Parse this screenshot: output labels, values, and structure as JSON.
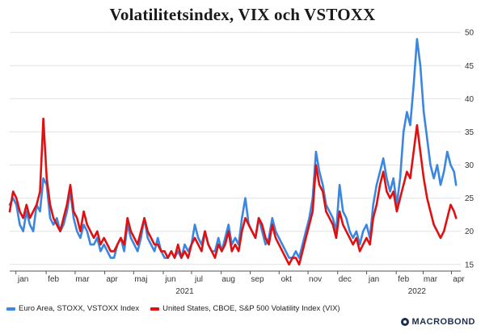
{
  "chart_data": {
    "type": "line",
    "title": "Volatilitetsindex, VIX och VSTOXX",
    "ylim": [
      14,
      51
    ],
    "yticks": [
      15,
      20,
      25,
      30,
      35,
      40,
      45,
      50
    ],
    "yaxis_side": "right",
    "grid": "horizontal",
    "xlim": [
      0,
      67
    ],
    "month_ticks": [
      {
        "label": "jan",
        "x": 2
      },
      {
        "label": "feb",
        "x": 6.5
      },
      {
        "label": "mar",
        "x": 10.8
      },
      {
        "label": "apr",
        "x": 15.2
      },
      {
        "label": "maj",
        "x": 19.5
      },
      {
        "label": "jun",
        "x": 23.9
      },
      {
        "label": "jul",
        "x": 28.1
      },
      {
        "label": "aug",
        "x": 32.5
      },
      {
        "label": "sep",
        "x": 36.8
      },
      {
        "label": "okt",
        "x": 41.1
      },
      {
        "label": "nov",
        "x": 45.4
      },
      {
        "label": "dec",
        "x": 49.8
      },
      {
        "label": "jan",
        "x": 54.1
      },
      {
        "label": "feb",
        "x": 58.5
      },
      {
        "label": "mar",
        "x": 62.5
      },
      {
        "label": "apr",
        "x": 66.7
      }
    ],
    "year_labels": [
      {
        "label": "2021",
        "x": 26
      },
      {
        "label": "2022",
        "x": 60.5
      }
    ],
    "x_unit": "weeks since start of Dec 2020",
    "legend_position": "bottom-left",
    "series": [
      {
        "name": "Euro Area, STOXX, VSTOXX Index",
        "color": "#3a86e0",
        "values": [
          [
            0,
            24
          ],
          [
            0.5,
            25
          ],
          [
            1,
            24
          ],
          [
            1.5,
            21
          ],
          [
            2,
            20
          ],
          [
            2.5,
            23
          ],
          [
            3,
            21
          ],
          [
            3.5,
            20
          ],
          [
            4,
            24
          ],
          [
            4.5,
            23
          ],
          [
            5,
            28
          ],
          [
            5.5,
            27
          ],
          [
            6,
            22
          ],
          [
            6.5,
            21
          ],
          [
            7,
            22
          ],
          [
            7.5,
            20
          ],
          [
            8,
            21
          ],
          [
            8.5,
            23
          ],
          [
            9,
            26
          ],
          [
            9.5,
            22
          ],
          [
            10,
            20
          ],
          [
            10.5,
            19
          ],
          [
            11,
            21
          ],
          [
            11.5,
            20
          ],
          [
            12,
            18
          ],
          [
            12.5,
            18
          ],
          [
            13,
            19
          ],
          [
            13.5,
            17
          ],
          [
            14,
            18
          ],
          [
            14.5,
            17
          ],
          [
            15,
            16
          ],
          [
            15.5,
            16
          ],
          [
            16,
            18
          ],
          [
            16.5,
            19
          ],
          [
            17,
            17
          ],
          [
            17.5,
            21
          ],
          [
            18,
            19
          ],
          [
            18.5,
            18
          ],
          [
            19,
            17
          ],
          [
            19.5,
            19
          ],
          [
            20,
            22
          ],
          [
            20.5,
            19
          ],
          [
            21,
            18
          ],
          [
            21.5,
            17
          ],
          [
            22,
            19
          ],
          [
            22.5,
            17
          ],
          [
            23,
            16
          ],
          [
            23.5,
            16
          ],
          [
            24,
            17
          ],
          [
            24.5,
            16
          ],
          [
            25,
            17
          ],
          [
            25.5,
            16
          ],
          [
            26,
            18
          ],
          [
            26.5,
            17
          ],
          [
            27,
            18
          ],
          [
            27.5,
            21
          ],
          [
            28,
            19
          ],
          [
            28.5,
            18
          ],
          [
            29,
            20
          ],
          [
            29.5,
            18
          ],
          [
            30,
            17
          ],
          [
            30.5,
            17
          ],
          [
            31,
            19
          ],
          [
            31.5,
            17
          ],
          [
            32,
            19
          ],
          [
            32.5,
            21
          ],
          [
            33,
            18
          ],
          [
            33.5,
            19
          ],
          [
            34,
            18
          ],
          [
            34.5,
            22
          ],
          [
            35,
            25
          ],
          [
            35.5,
            21
          ],
          [
            36,
            20
          ],
          [
            36.5,
            19
          ],
          [
            37,
            22
          ],
          [
            37.5,
            20
          ],
          [
            38,
            18
          ],
          [
            38.5,
            19
          ],
          [
            39,
            22
          ],
          [
            39.5,
            20
          ],
          [
            40,
            19
          ],
          [
            40.5,
            18
          ],
          [
            41,
            17
          ],
          [
            41.5,
            16
          ],
          [
            42,
            16
          ],
          [
            42.5,
            17
          ],
          [
            43,
            16
          ],
          [
            43.5,
            18
          ],
          [
            44,
            20
          ],
          [
            44.5,
            22
          ],
          [
            45,
            25
          ],
          [
            45.5,
            32
          ],
          [
            46,
            29
          ],
          [
            46.5,
            27
          ],
          [
            47,
            24
          ],
          [
            47.5,
            23
          ],
          [
            48,
            22
          ],
          [
            48.5,
            20
          ],
          [
            49,
            27
          ],
          [
            49.5,
            23
          ],
          [
            50,
            22
          ],
          [
            50.5,
            20
          ],
          [
            51,
            19
          ],
          [
            51.5,
            20
          ],
          [
            52,
            18
          ],
          [
            52.5,
            20
          ],
          [
            53,
            21
          ],
          [
            53.5,
            19
          ],
          [
            54,
            24
          ],
          [
            54.5,
            27
          ],
          [
            55,
            29
          ],
          [
            55.5,
            31
          ],
          [
            56,
            28
          ],
          [
            56.5,
            26
          ],
          [
            57,
            28
          ],
          [
            57.5,
            24
          ],
          [
            58,
            28
          ],
          [
            58.5,
            35
          ],
          [
            59,
            38
          ],
          [
            59.5,
            36
          ],
          [
            60,
            42
          ],
          [
            60.5,
            49
          ],
          [
            61,
            45
          ],
          [
            61.5,
            38
          ],
          [
            62,
            34
          ],
          [
            62.5,
            30
          ],
          [
            63,
            28
          ],
          [
            63.5,
            30
          ],
          [
            64,
            27
          ],
          [
            64.5,
            29
          ],
          [
            65,
            32
          ],
          [
            65.5,
            30
          ],
          [
            66,
            29
          ],
          [
            66.3,
            27
          ]
        ]
      },
      {
        "name": "United States, CBOE, S&P 500 Volatility Index (VIX)",
        "color": "#e01010",
        "values": [
          [
            0,
            23
          ],
          [
            0.5,
            26
          ],
          [
            1,
            25
          ],
          [
            1.5,
            23
          ],
          [
            2,
            22
          ],
          [
            2.5,
            24
          ],
          [
            3,
            22
          ],
          [
            3.5,
            23
          ],
          [
            4,
            24
          ],
          [
            4.5,
            26
          ],
          [
            5,
            37
          ],
          [
            5.5,
            28
          ],
          [
            6,
            24
          ],
          [
            6.5,
            22
          ],
          [
            7,
            21
          ],
          [
            7.5,
            20
          ],
          [
            8,
            22
          ],
          [
            8.5,
            24
          ],
          [
            9,
            27
          ],
          [
            9.5,
            23
          ],
          [
            10,
            22
          ],
          [
            10.5,
            20
          ],
          [
            11,
            23
          ],
          [
            11.5,
            21
          ],
          [
            12,
            20
          ],
          [
            12.5,
            19
          ],
          [
            13,
            20
          ],
          [
            13.5,
            18
          ],
          [
            14,
            19
          ],
          [
            14.5,
            18
          ],
          [
            15,
            17
          ],
          [
            15.5,
            17
          ],
          [
            16,
            18
          ],
          [
            16.5,
            19
          ],
          [
            17,
            18
          ],
          [
            17.5,
            22
          ],
          [
            18,
            20
          ],
          [
            18.5,
            19
          ],
          [
            19,
            18
          ],
          [
            19.5,
            20
          ],
          [
            20,
            22
          ],
          [
            20.5,
            20
          ],
          [
            21,
            19
          ],
          [
            21.5,
            18
          ],
          [
            22,
            18
          ],
          [
            22.5,
            17
          ],
          [
            23,
            17
          ],
          [
            23.5,
            16
          ],
          [
            24,
            17
          ],
          [
            24.5,
            16
          ],
          [
            25,
            18
          ],
          [
            25.5,
            16
          ],
          [
            26,
            17
          ],
          [
            26.5,
            16
          ],
          [
            27,
            18
          ],
          [
            27.5,
            19
          ],
          [
            28,
            18
          ],
          [
            28.5,
            17
          ],
          [
            29,
            20
          ],
          [
            29.5,
            18
          ],
          [
            30,
            17
          ],
          [
            30.5,
            16
          ],
          [
            31,
            18
          ],
          [
            31.5,
            17
          ],
          [
            32,
            18
          ],
          [
            32.5,
            20
          ],
          [
            33,
            17
          ],
          [
            33.5,
            18
          ],
          [
            34,
            17
          ],
          [
            34.5,
            20
          ],
          [
            35,
            22
          ],
          [
            35.5,
            21
          ],
          [
            36,
            20
          ],
          [
            36.5,
            19
          ],
          [
            37,
            22
          ],
          [
            37.5,
            21
          ],
          [
            38,
            19
          ],
          [
            38.5,
            18
          ],
          [
            39,
            21
          ],
          [
            39.5,
            19
          ],
          [
            40,
            18
          ],
          [
            40.5,
            17
          ],
          [
            41,
            16
          ],
          [
            41.5,
            15
          ],
          [
            42,
            16
          ],
          [
            42.5,
            16
          ],
          [
            43,
            15
          ],
          [
            43.5,
            17
          ],
          [
            44,
            19
          ],
          [
            44.5,
            21
          ],
          [
            45,
            23
          ],
          [
            45.5,
            30
          ],
          [
            46,
            27
          ],
          [
            46.5,
            26
          ],
          [
            47,
            23
          ],
          [
            47.5,
            22
          ],
          [
            48,
            21
          ],
          [
            48.5,
            19
          ],
          [
            49,
            23
          ],
          [
            49.5,
            21
          ],
          [
            50,
            20
          ],
          [
            50.5,
            19
          ],
          [
            51,
            18
          ],
          [
            51.5,
            19
          ],
          [
            52,
            17
          ],
          [
            52.5,
            18
          ],
          [
            53,
            19
          ],
          [
            53.5,
            18
          ],
          [
            54,
            22
          ],
          [
            54.5,
            24
          ],
          [
            55,
            27
          ],
          [
            55.5,
            29
          ],
          [
            56,
            26
          ],
          [
            56.5,
            25
          ],
          [
            57,
            26
          ],
          [
            57.5,
            23
          ],
          [
            58,
            25
          ],
          [
            58.5,
            27
          ],
          [
            59,
            29
          ],
          [
            59.5,
            28
          ],
          [
            60,
            32
          ],
          [
            60.5,
            36
          ],
          [
            61,
            32
          ],
          [
            61.5,
            28
          ],
          [
            62,
            25
          ],
          [
            62.5,
            23
          ],
          [
            63,
            21
          ],
          [
            63.5,
            20
          ],
          [
            64,
            19
          ],
          [
            64.5,
            20
          ],
          [
            65,
            22
          ],
          [
            65.5,
            24
          ],
          [
            66,
            23
          ],
          [
            66.3,
            22
          ]
        ]
      }
    ]
  },
  "branding": "MACROBOND"
}
